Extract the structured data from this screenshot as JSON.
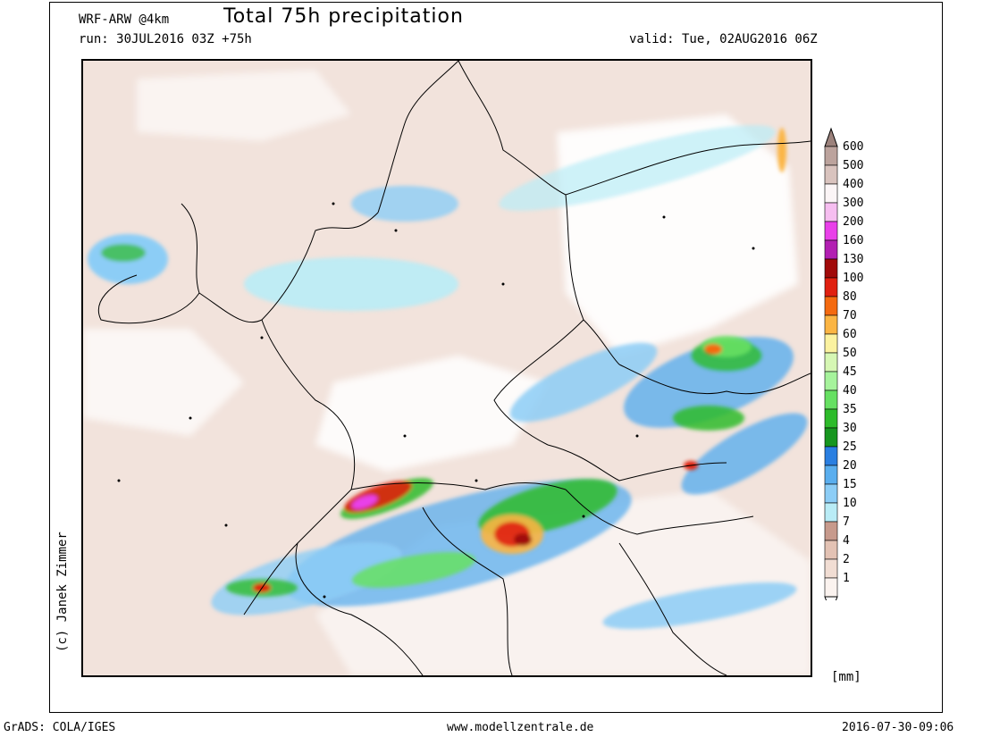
{
  "header": {
    "model": "WRF-ARW @4km",
    "title": "Total 75h precipitation",
    "run": "run: 30JUL2016 03Z +75h",
    "valid": "valid: Tue, 02AUG2016 06Z"
  },
  "credit": "(c) Janek Zimmer",
  "legend": {
    "unit": "[mm]",
    "levels": [
      {
        "label": "1",
        "color": "#fbf3ef"
      },
      {
        "label": "2",
        "color": "#f1ddd3"
      },
      {
        "label": "4",
        "color": "#e3c2b4"
      },
      {
        "label": "7",
        "color": "#c79a8c"
      },
      {
        "label": "10",
        "color": "#b9ecf6"
      },
      {
        "label": "15",
        "color": "#8ccdf6"
      },
      {
        "label": "20",
        "color": "#5aaeee"
      },
      {
        "label": "25",
        "color": "#2a7fe1"
      },
      {
        "label": "30",
        "color": "#17961f"
      },
      {
        "label": "35",
        "color": "#2dbb2a"
      },
      {
        "label": "40",
        "color": "#66e062"
      },
      {
        "label": "45",
        "color": "#a6f39c"
      },
      {
        "label": "50",
        "color": "#d6f7b4"
      },
      {
        "label": "60",
        "color": "#fbf2a0"
      },
      {
        "label": "70",
        "color": "#fbb544"
      },
      {
        "label": "80",
        "color": "#f46a10"
      },
      {
        "label": "100",
        "color": "#e02010"
      },
      {
        "label": "130",
        "color": "#a10a0a"
      },
      {
        "label": "160",
        "color": "#b21fb2"
      },
      {
        "label": "200",
        "color": "#e940e9"
      },
      {
        "label": "300",
        "color": "#f6bef0"
      },
      {
        "label": "400",
        "color": "#fbf5f6"
      },
      {
        "label": "500",
        "color": "#d9c3be"
      },
      {
        "label": "600",
        "color": "#bca39d"
      }
    ],
    "arrow_color": "#9c827c"
  },
  "footer": {
    "left": "GrADS: COLA/IGES",
    "center": "www.modellzentrale.de",
    "right": "2016-07-30-09:06"
  }
}
